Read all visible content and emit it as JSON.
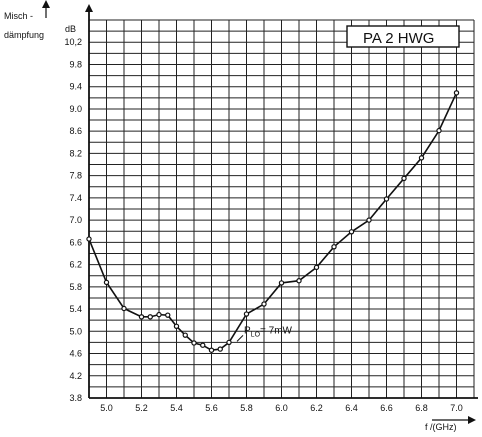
{
  "chart_data": {
    "type": "line",
    "title": "PA 2 HWG",
    "ylabel": [
      "Misch -",
      "dämpfung"
    ],
    "yunit": "dB",
    "xlabel": "f /(GHz)",
    "xlim": [
      4.9,
      7.1
    ],
    "ylim": [
      3.8,
      10.6
    ],
    "x_ticks": [
      "5.0",
      "5.2",
      "5.4",
      "5.6",
      "5.8",
      "6.0",
      "6.2",
      "6.4",
      "6.6",
      "6.8",
      "7.0"
    ],
    "y_ticks": [
      "3.8",
      "4.2",
      "4.6",
      "5.0",
      "5.4",
      "5.8",
      "6.2",
      "6.6",
      "7.0",
      "7.4",
      "7.8",
      "8.2",
      "8.6",
      "9.0",
      "9.4",
      "9.8",
      "10,2"
    ],
    "grid": true,
    "annotation": {
      "text": "P",
      "subscript": "LO",
      "suffix": "= 7mW",
      "x": 5.74,
      "y": 4.8
    },
    "series": [
      {
        "x": [
          4.9,
          5.0,
          5.1,
          5.2,
          5.25,
          5.3,
          5.35,
          5.4,
          5.45,
          5.5,
          5.55,
          5.6,
          5.65,
          5.7,
          5.8,
          5.9,
          6.0,
          6.1,
          6.2,
          6.3,
          6.4,
          6.5,
          6.6,
          6.7,
          6.8,
          6.9,
          7.0
        ],
        "y": [
          6.66,
          5.88,
          5.41,
          5.26,
          5.26,
          5.3,
          5.29,
          5.09,
          4.93,
          4.79,
          4.75,
          4.66,
          4.68,
          4.8,
          5.31,
          5.49,
          5.87,
          5.91,
          6.15,
          6.52,
          6.79,
          7.0,
          7.38,
          7.75,
          8.12,
          8.61,
          9.29
        ]
      }
    ]
  }
}
